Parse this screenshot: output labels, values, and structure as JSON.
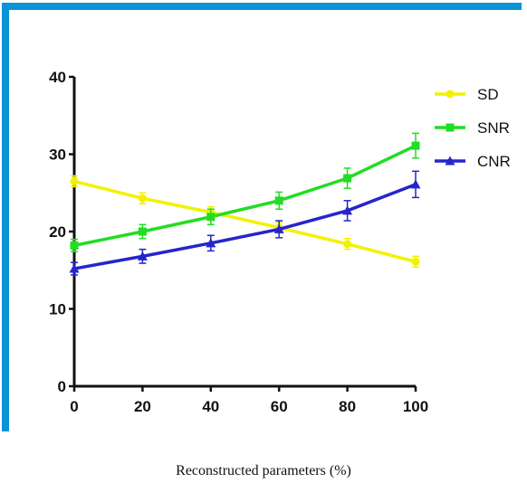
{
  "chart_data": {
    "type": "line",
    "title": "",
    "xlabel": "Reconstructed parameters (%)",
    "ylabel": "",
    "x": [
      0,
      20,
      40,
      60,
      80,
      100
    ],
    "xticks": [
      "0",
      "20",
      "40",
      "60",
      "80",
      "100"
    ],
    "yticks": [
      "0",
      "10",
      "20",
      "30",
      "40"
    ],
    "xlim": [
      0,
      100
    ],
    "ylim": [
      0,
      40
    ],
    "grid": false,
    "legend_position": "top-right",
    "series": [
      {
        "name": "SD",
        "color": "#f2f200",
        "marker": "circle",
        "values": [
          26.5,
          24.3,
          22.5,
          20.5,
          18.4,
          16.1
        ],
        "errors": [
          0.7,
          0.7,
          0.7,
          0.7,
          0.7,
          0.7
        ]
      },
      {
        "name": "SNR",
        "color": "#22dd22",
        "marker": "square",
        "values": [
          18.2,
          20.0,
          21.9,
          24.0,
          26.9,
          31.1
        ],
        "errors": [
          0.8,
          0.9,
          1.0,
          1.1,
          1.3,
          1.6
        ]
      },
      {
        "name": "CNR",
        "color": "#2525cc",
        "marker": "triangle",
        "values": [
          15.2,
          16.8,
          18.5,
          20.3,
          22.7,
          26.1
        ],
        "errors": [
          0.8,
          0.9,
          1.0,
          1.1,
          1.3,
          1.7
        ]
      }
    ]
  }
}
